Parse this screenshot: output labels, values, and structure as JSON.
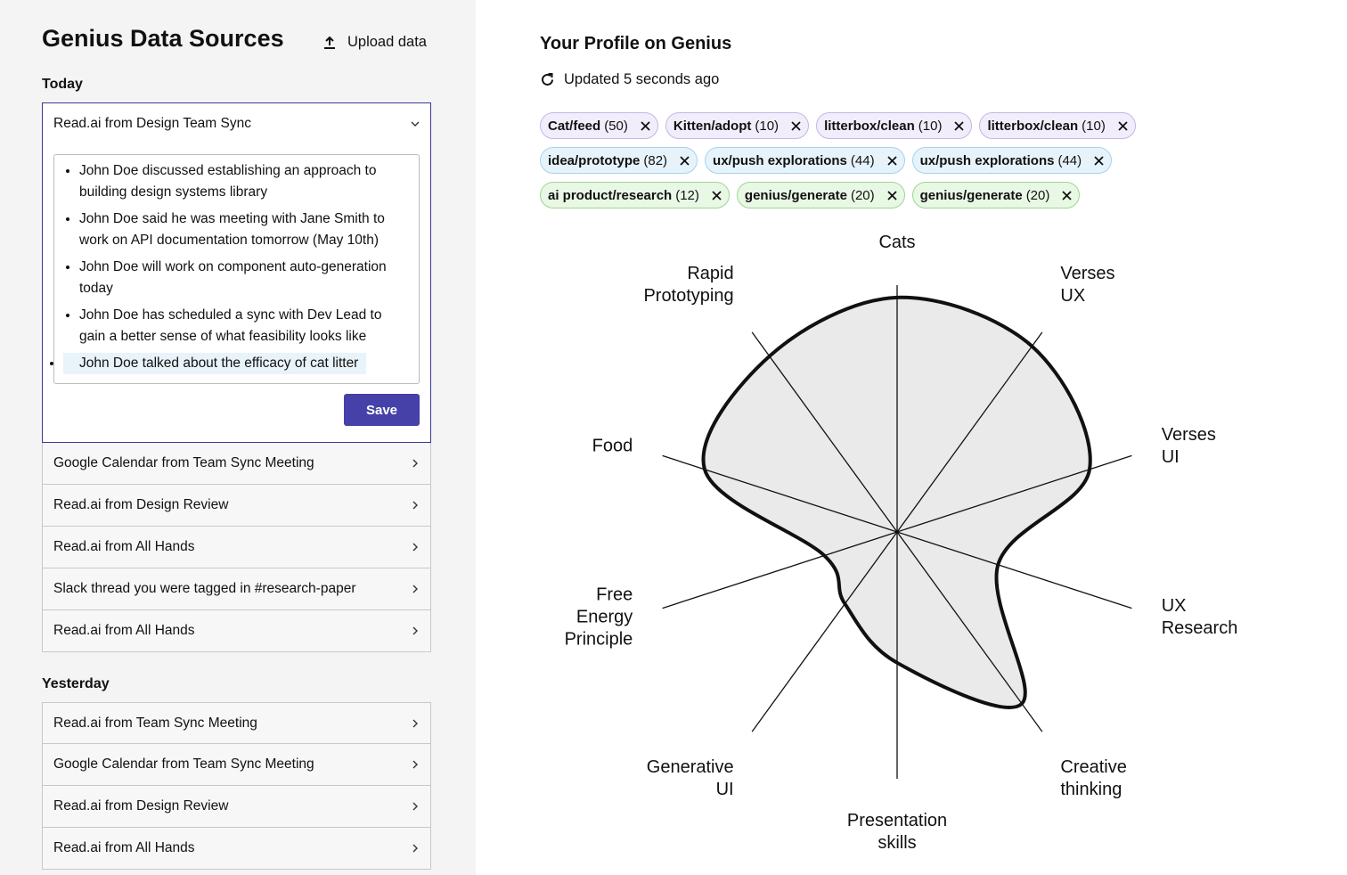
{
  "sidebar": {
    "title": "Genius Data Sources",
    "upload": "Upload data",
    "sections": [
      {
        "heading": "Today",
        "items": [
          {
            "title": "Read.ai from Design Team Sync",
            "notes": [
              "John Doe discussed establishing an approach to building design systems library",
              "John Doe said he was meeting with Jane Smith to work on API documentation tomorrow (May 10th)",
              "John Doe will work on component auto-generation today",
              "John Doe has scheduled a sync with Dev Lead to gain a better sense of what feasibility looks like",
              "John Doe talked about the efficacy of cat litter"
            ],
            "action": "Save"
          },
          {
            "title": "Google Calendar from Team Sync Meeting"
          },
          {
            "title": "Read.ai from Design Review"
          },
          {
            "title": "Read.ai from All Hands"
          },
          {
            "title": "Slack thread you were tagged in #research-paper"
          },
          {
            "title": "Read.ai from All Hands"
          }
        ]
      },
      {
        "heading": "Yesterday",
        "items": [
          {
            "title": "Read.ai from Team Sync Meeting"
          },
          {
            "title": "Google Calendar from Team Sync Meeting"
          },
          {
            "title": "Read.ai from Design Review"
          },
          {
            "title": "Read.ai from All Hands"
          }
        ]
      }
    ]
  },
  "profile": {
    "title": "Your Profile on Genius",
    "updated": "Updated 5 seconds ago",
    "tags": [
      {
        "name": "Cat/feed",
        "count": "(50)",
        "tone": "purple"
      },
      {
        "name": "Kitten/adopt",
        "count": "(10)",
        "tone": "purple"
      },
      {
        "name": "litterbox/clean",
        "count": "(10)",
        "tone": "purple"
      },
      {
        "name": "litterbox/clean",
        "count": "(10)",
        "tone": "purple"
      },
      {
        "name": "idea/prototype",
        "count": "(82)",
        "tone": "blue"
      },
      {
        "name": "ux/push explorations",
        "count": "(44)",
        "tone": "blue"
      },
      {
        "name": "ux/push explorations",
        "count": "(44)",
        "tone": "blue"
      },
      {
        "name": "ai product/research",
        "count": "(12)",
        "tone": "green"
      },
      {
        "name": "genius/generate",
        "count": "(20)",
        "tone": "green"
      },
      {
        "name": "genius/generate",
        "count": "(20)",
        "tone": "green"
      }
    ]
  },
  "chart_data": {
    "type": "radar",
    "categories": [
      "Cats",
      "Verses UX",
      "Verses UI",
      "UX Research",
      "Creative thinking",
      "Presentation skills",
      "Generative UI",
      "Free Energy Principle",
      "Food",
      "Rapid Prototyping"
    ],
    "values": [
      95,
      93,
      82,
      43,
      86,
      53,
      36,
      31,
      82,
      88
    ],
    "ylim": [
      0,
      100
    ],
    "color": "#e6e6e6"
  }
}
